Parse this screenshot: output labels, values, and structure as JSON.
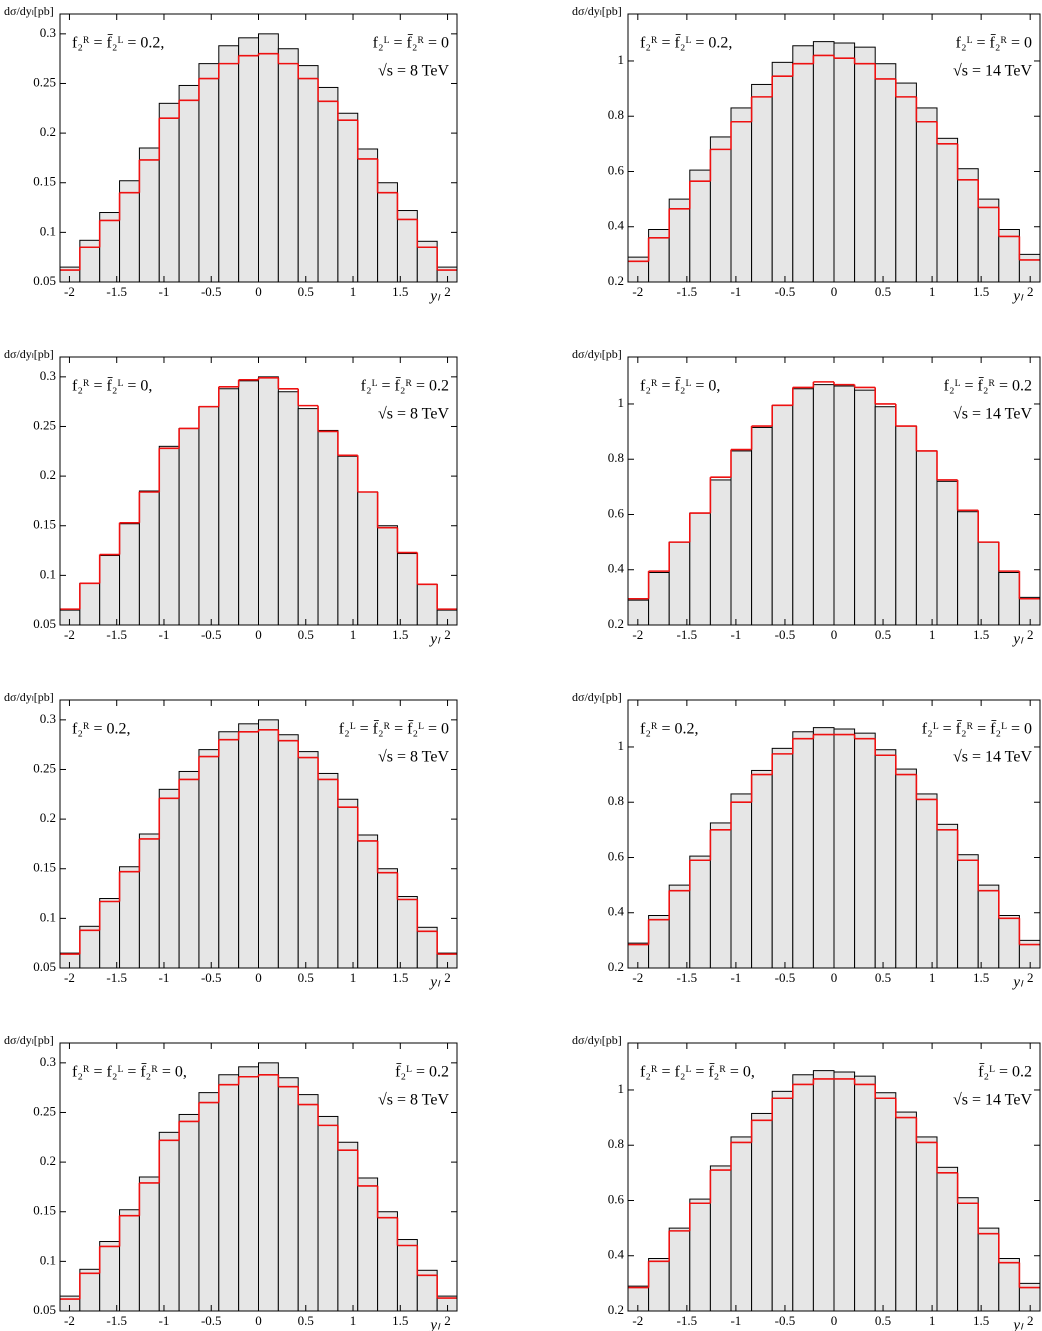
{
  "chart_data": [
    {
      "type": "histogram",
      "y_label": "dσ/dyₗ[pb]",
      "x_label": "yₗ",
      "annotations": [
        "f₂ᴿ = f̄₂ᴸ = 0.2,",
        "f₂ᴸ = f̄₂ᴿ = 0",
        "√s = 8 TeV"
      ],
      "bins": [
        -2.1,
        -1.89,
        -1.68,
        -1.47,
        -1.26,
        -1.05,
        -0.84,
        -0.63,
        -0.42,
        -0.21,
        0,
        0.21,
        0.42,
        0.63,
        0.84,
        1.05,
        1.26,
        1.47,
        1.68,
        1.89,
        2.1
      ],
      "series": [
        {
          "color": "#e6e6e6",
          "values": [
            0.065,
            0.092,
            0.12,
            0.152,
            0.185,
            0.23,
            0.248,
            0.27,
            0.288,
            0.296,
            0.3,
            0.285,
            0.268,
            0.246,
            0.22,
            0.184,
            0.15,
            0.122,
            0.091,
            0.065
          ]
        },
        {
          "color": "#ee1111",
          "values": [
            0.062,
            0.085,
            0.112,
            0.14,
            0.173,
            0.215,
            0.233,
            0.255,
            0.27,
            0.278,
            0.28,
            0.27,
            0.255,
            0.232,
            0.213,
            0.174,
            0.14,
            0.113,
            0.085,
            0.062
          ]
        }
      ],
      "xlim": [
        -2.1,
        2.1
      ],
      "ylim": [
        0.05,
        0.32
      ],
      "xticks": [
        -2,
        -1.5,
        -1,
        -0.5,
        0,
        0.5,
        1,
        1.5,
        2
      ],
      "yticks": [
        0.05,
        0.1,
        0.15,
        0.2,
        0.25,
        0.3
      ]
    },
    {
      "type": "histogram",
      "y_label": "dσ/dyₗ[pb]",
      "x_label": "yₗ",
      "annotations": [
        "f₂ᴿ = f̄₂ᴸ = 0.2,",
        "f₂ᴸ = f̄₂ᴿ = 0",
        "√s = 14 TeV"
      ],
      "bins": [
        -2.1,
        -1.89,
        -1.68,
        -1.47,
        -1.26,
        -1.05,
        -0.84,
        -0.63,
        -0.42,
        -0.21,
        0,
        0.21,
        0.42,
        0.63,
        0.84,
        1.05,
        1.26,
        1.47,
        1.68,
        1.89,
        2.1
      ],
      "series": [
        {
          "color": "#e6e6e6",
          "values": [
            0.29,
            0.39,
            0.5,
            0.605,
            0.725,
            0.83,
            0.915,
            0.995,
            1.055,
            1.07,
            1.065,
            1.05,
            0.99,
            0.92,
            0.83,
            0.72,
            0.61,
            0.5,
            0.39,
            0.3
          ]
        },
        {
          "color": "#ee1111",
          "values": [
            0.275,
            0.36,
            0.465,
            0.565,
            0.68,
            0.78,
            0.87,
            0.945,
            0.99,
            1.02,
            1.01,
            0.99,
            0.935,
            0.87,
            0.78,
            0.7,
            0.57,
            0.47,
            0.365,
            0.28
          ]
        }
      ],
      "xlim": [
        -2.1,
        2.1
      ],
      "ylim": [
        0.2,
        1.17
      ],
      "xticks": [
        -2,
        -1.5,
        -1,
        -0.5,
        0,
        0.5,
        1,
        1.5,
        2
      ],
      "yticks": [
        0.2,
        0.4,
        0.6,
        0.8,
        1
      ]
    },
    {
      "type": "histogram",
      "y_label": "dσ/dyₗ[pb]",
      "x_label": "yₗ",
      "annotations": [
        "f₂ᴿ = f̄₂ᴸ = 0,",
        "f₂ᴸ = f̄₂ᴿ = 0.2",
        "√s = 8 TeV"
      ],
      "bins": [
        -2.1,
        -1.89,
        -1.68,
        -1.47,
        -1.26,
        -1.05,
        -0.84,
        -0.63,
        -0.42,
        -0.21,
        0,
        0.21,
        0.42,
        0.63,
        0.84,
        1.05,
        1.26,
        1.47,
        1.68,
        1.89,
        2.1
      ],
      "series": [
        {
          "color": "#e6e6e6",
          "values": [
            0.065,
            0.092,
            0.12,
            0.152,
            0.185,
            0.23,
            0.248,
            0.27,
            0.288,
            0.296,
            0.3,
            0.285,
            0.268,
            0.246,
            0.22,
            0.184,
            0.15,
            0.122,
            0.091,
            0.065
          ]
        },
        {
          "color": "#ee1111",
          "values": [
            0.066,
            0.092,
            0.121,
            0.153,
            0.184,
            0.228,
            0.248,
            0.27,
            0.29,
            0.297,
            0.299,
            0.288,
            0.271,
            0.245,
            0.221,
            0.184,
            0.148,
            0.123,
            0.091,
            0.066
          ]
        }
      ],
      "xlim": [
        -2.1,
        2.1
      ],
      "ylim": [
        0.05,
        0.32
      ],
      "xticks": [
        -2,
        -1.5,
        -1,
        -0.5,
        0,
        0.5,
        1,
        1.5,
        2
      ],
      "yticks": [
        0.05,
        0.1,
        0.15,
        0.2,
        0.25,
        0.3
      ]
    },
    {
      "type": "histogram",
      "y_label": "dσ/dyₗ[pb]",
      "x_label": "yₗ",
      "annotations": [
        "f₂ᴿ = f̄₂ᴸ = 0,",
        "f₂ᴸ = f̄₂ᴿ = 0.2",
        "√s = 14 TeV"
      ],
      "bins": [
        -2.1,
        -1.89,
        -1.68,
        -1.47,
        -1.26,
        -1.05,
        -0.84,
        -0.63,
        -0.42,
        -0.21,
        0,
        0.21,
        0.42,
        0.63,
        0.84,
        1.05,
        1.26,
        1.47,
        1.68,
        1.89,
        2.1
      ],
      "series": [
        {
          "color": "#e6e6e6",
          "values": [
            0.29,
            0.39,
            0.5,
            0.605,
            0.725,
            0.83,
            0.915,
            0.995,
            1.055,
            1.07,
            1.065,
            1.05,
            0.99,
            0.92,
            0.83,
            0.72,
            0.61,
            0.5,
            0.39,
            0.3
          ]
        },
        {
          "color": "#ee1111",
          "values": [
            0.295,
            0.395,
            0.5,
            0.605,
            0.735,
            0.835,
            0.92,
            0.995,
            1.06,
            1.08,
            1.07,
            1.06,
            1.0,
            0.92,
            0.83,
            0.725,
            0.615,
            0.5,
            0.395,
            0.295
          ]
        }
      ],
      "xlim": [
        -2.1,
        2.1
      ],
      "ylim": [
        0.2,
        1.17
      ],
      "xticks": [
        -2,
        -1.5,
        -1,
        -0.5,
        0,
        0.5,
        1,
        1.5,
        2
      ],
      "yticks": [
        0.2,
        0.4,
        0.6,
        0.8,
        1
      ]
    },
    {
      "type": "histogram",
      "y_label": "dσ/dyₗ[pb]",
      "x_label": "yₗ",
      "annotations": [
        "f₂ᴿ = 0.2,",
        "f₂ᴸ = f̄₂ᴿ = f̄₂ᴸ = 0",
        "√s = 8 TeV"
      ],
      "bins": [
        -2.1,
        -1.89,
        -1.68,
        -1.47,
        -1.26,
        -1.05,
        -0.84,
        -0.63,
        -0.42,
        -0.21,
        0,
        0.21,
        0.42,
        0.63,
        0.84,
        1.05,
        1.26,
        1.47,
        1.68,
        1.89,
        2.1
      ],
      "series": [
        {
          "color": "#e6e6e6",
          "values": [
            0.065,
            0.092,
            0.12,
            0.152,
            0.185,
            0.23,
            0.248,
            0.27,
            0.288,
            0.296,
            0.3,
            0.285,
            0.268,
            0.246,
            0.22,
            0.184,
            0.15,
            0.122,
            0.091,
            0.065
          ]
        },
        {
          "color": "#ee1111",
          "values": [
            0.064,
            0.088,
            0.117,
            0.147,
            0.18,
            0.221,
            0.24,
            0.263,
            0.28,
            0.288,
            0.29,
            0.279,
            0.262,
            0.24,
            0.212,
            0.178,
            0.146,
            0.119,
            0.087,
            0.064
          ]
        }
      ],
      "xlim": [
        -2.1,
        2.1
      ],
      "ylim": [
        0.05,
        0.32
      ],
      "xticks": [
        -2,
        -1.5,
        -1,
        -0.5,
        0,
        0.5,
        1,
        1.5,
        2
      ],
      "yticks": [
        0.05,
        0.1,
        0.15,
        0.2,
        0.25,
        0.3
      ]
    },
    {
      "type": "histogram",
      "y_label": "dσ/dyₗ[pb]",
      "x_label": "yₗ",
      "annotations": [
        "f₂ᴿ = 0.2,",
        "f₂ᴸ = f̄₂ᴿ = f̄₂ᴸ = 0",
        "√s = 14 TeV"
      ],
      "bins": [
        -2.1,
        -1.89,
        -1.68,
        -1.47,
        -1.26,
        -1.05,
        -0.84,
        -0.63,
        -0.42,
        -0.21,
        0,
        0.21,
        0.42,
        0.63,
        0.84,
        1.05,
        1.26,
        1.47,
        1.68,
        1.89,
        2.1
      ],
      "series": [
        {
          "color": "#e6e6e6",
          "values": [
            0.29,
            0.39,
            0.5,
            0.605,
            0.725,
            0.83,
            0.915,
            0.995,
            1.055,
            1.07,
            1.065,
            1.05,
            0.99,
            0.92,
            0.83,
            0.72,
            0.61,
            0.5,
            0.39,
            0.3
          ]
        },
        {
          "color": "#ee1111",
          "values": [
            0.285,
            0.375,
            0.48,
            0.59,
            0.7,
            0.8,
            0.9,
            0.975,
            1.03,
            1.045,
            1.045,
            1.03,
            0.97,
            0.9,
            0.81,
            0.7,
            0.59,
            0.48,
            0.38,
            0.285
          ]
        }
      ],
      "xlim": [
        -2.1,
        2.1
      ],
      "ylim": [
        0.2,
        1.17
      ],
      "xticks": [
        -2,
        -1.5,
        -1,
        -0.5,
        0,
        0.5,
        1,
        1.5,
        2
      ],
      "yticks": [
        0.2,
        0.4,
        0.6,
        0.8,
        1
      ]
    },
    {
      "type": "histogram",
      "y_label": "dσ/dyₗ[pb]",
      "x_label": "yₗ",
      "annotations": [
        "f₂ᴿ = f₂ᴸ = f̄₂ᴿ = 0,",
        "f̄₂ᴸ = 0.2",
        "√s = 8 TeV"
      ],
      "bins": [
        -2.1,
        -1.89,
        -1.68,
        -1.47,
        -1.26,
        -1.05,
        -0.84,
        -0.63,
        -0.42,
        -0.21,
        0,
        0.21,
        0.42,
        0.63,
        0.84,
        1.05,
        1.26,
        1.47,
        1.68,
        1.89,
        2.1
      ],
      "series": [
        {
          "color": "#e6e6e6",
          "values": [
            0.065,
            0.092,
            0.12,
            0.152,
            0.185,
            0.23,
            0.248,
            0.27,
            0.288,
            0.296,
            0.3,
            0.285,
            0.268,
            0.246,
            0.22,
            0.184,
            0.15,
            0.122,
            0.091,
            0.065
          ]
        },
        {
          "color": "#ee1111",
          "values": [
            0.062,
            0.088,
            0.115,
            0.146,
            0.179,
            0.222,
            0.241,
            0.26,
            0.278,
            0.286,
            0.288,
            0.276,
            0.258,
            0.237,
            0.212,
            0.176,
            0.144,
            0.116,
            0.086,
            0.063
          ]
        }
      ],
      "xlim": [
        -2.1,
        2.1
      ],
      "ylim": [
        0.05,
        0.32
      ],
      "xticks": [
        -2,
        -1.5,
        -1,
        -0.5,
        0,
        0.5,
        1,
        1.5,
        2
      ],
      "yticks": [
        0.05,
        0.1,
        0.15,
        0.2,
        0.25,
        0.3
      ]
    },
    {
      "type": "histogram",
      "y_label": "dσ/dyₗ[pb]",
      "x_label": "yₗ",
      "annotations": [
        "f₂ᴿ = f₂ᴸ = f̄₂ᴿ = 0,",
        "f̄₂ᴸ = 0.2",
        "√s = 14 TeV"
      ],
      "bins": [
        -2.1,
        -1.89,
        -1.68,
        -1.47,
        -1.26,
        -1.05,
        -0.84,
        -0.63,
        -0.42,
        -0.21,
        0,
        0.21,
        0.42,
        0.63,
        0.84,
        1.05,
        1.26,
        1.47,
        1.68,
        1.89,
        2.1
      ],
      "series": [
        {
          "color": "#e6e6e6",
          "values": [
            0.29,
            0.39,
            0.5,
            0.605,
            0.725,
            0.83,
            0.915,
            0.995,
            1.055,
            1.07,
            1.065,
            1.05,
            0.99,
            0.92,
            0.83,
            0.72,
            0.61,
            0.5,
            0.39,
            0.3
          ]
        },
        {
          "color": "#ee1111",
          "values": [
            0.285,
            0.38,
            0.49,
            0.59,
            0.71,
            0.81,
            0.89,
            0.97,
            1.02,
            1.04,
            1.04,
            1.02,
            0.97,
            0.9,
            0.81,
            0.7,
            0.59,
            0.48,
            0.375,
            0.285
          ]
        }
      ],
      "xlim": [
        -2.1,
        2.1
      ],
      "ylim": [
        0.2,
        1.17
      ],
      "xticks": [
        -2,
        -1.5,
        -1,
        -0.5,
        0,
        0.5,
        1,
        1.5,
        2
      ],
      "yticks": [
        0.2,
        0.4,
        0.6,
        0.8,
        1
      ]
    }
  ]
}
